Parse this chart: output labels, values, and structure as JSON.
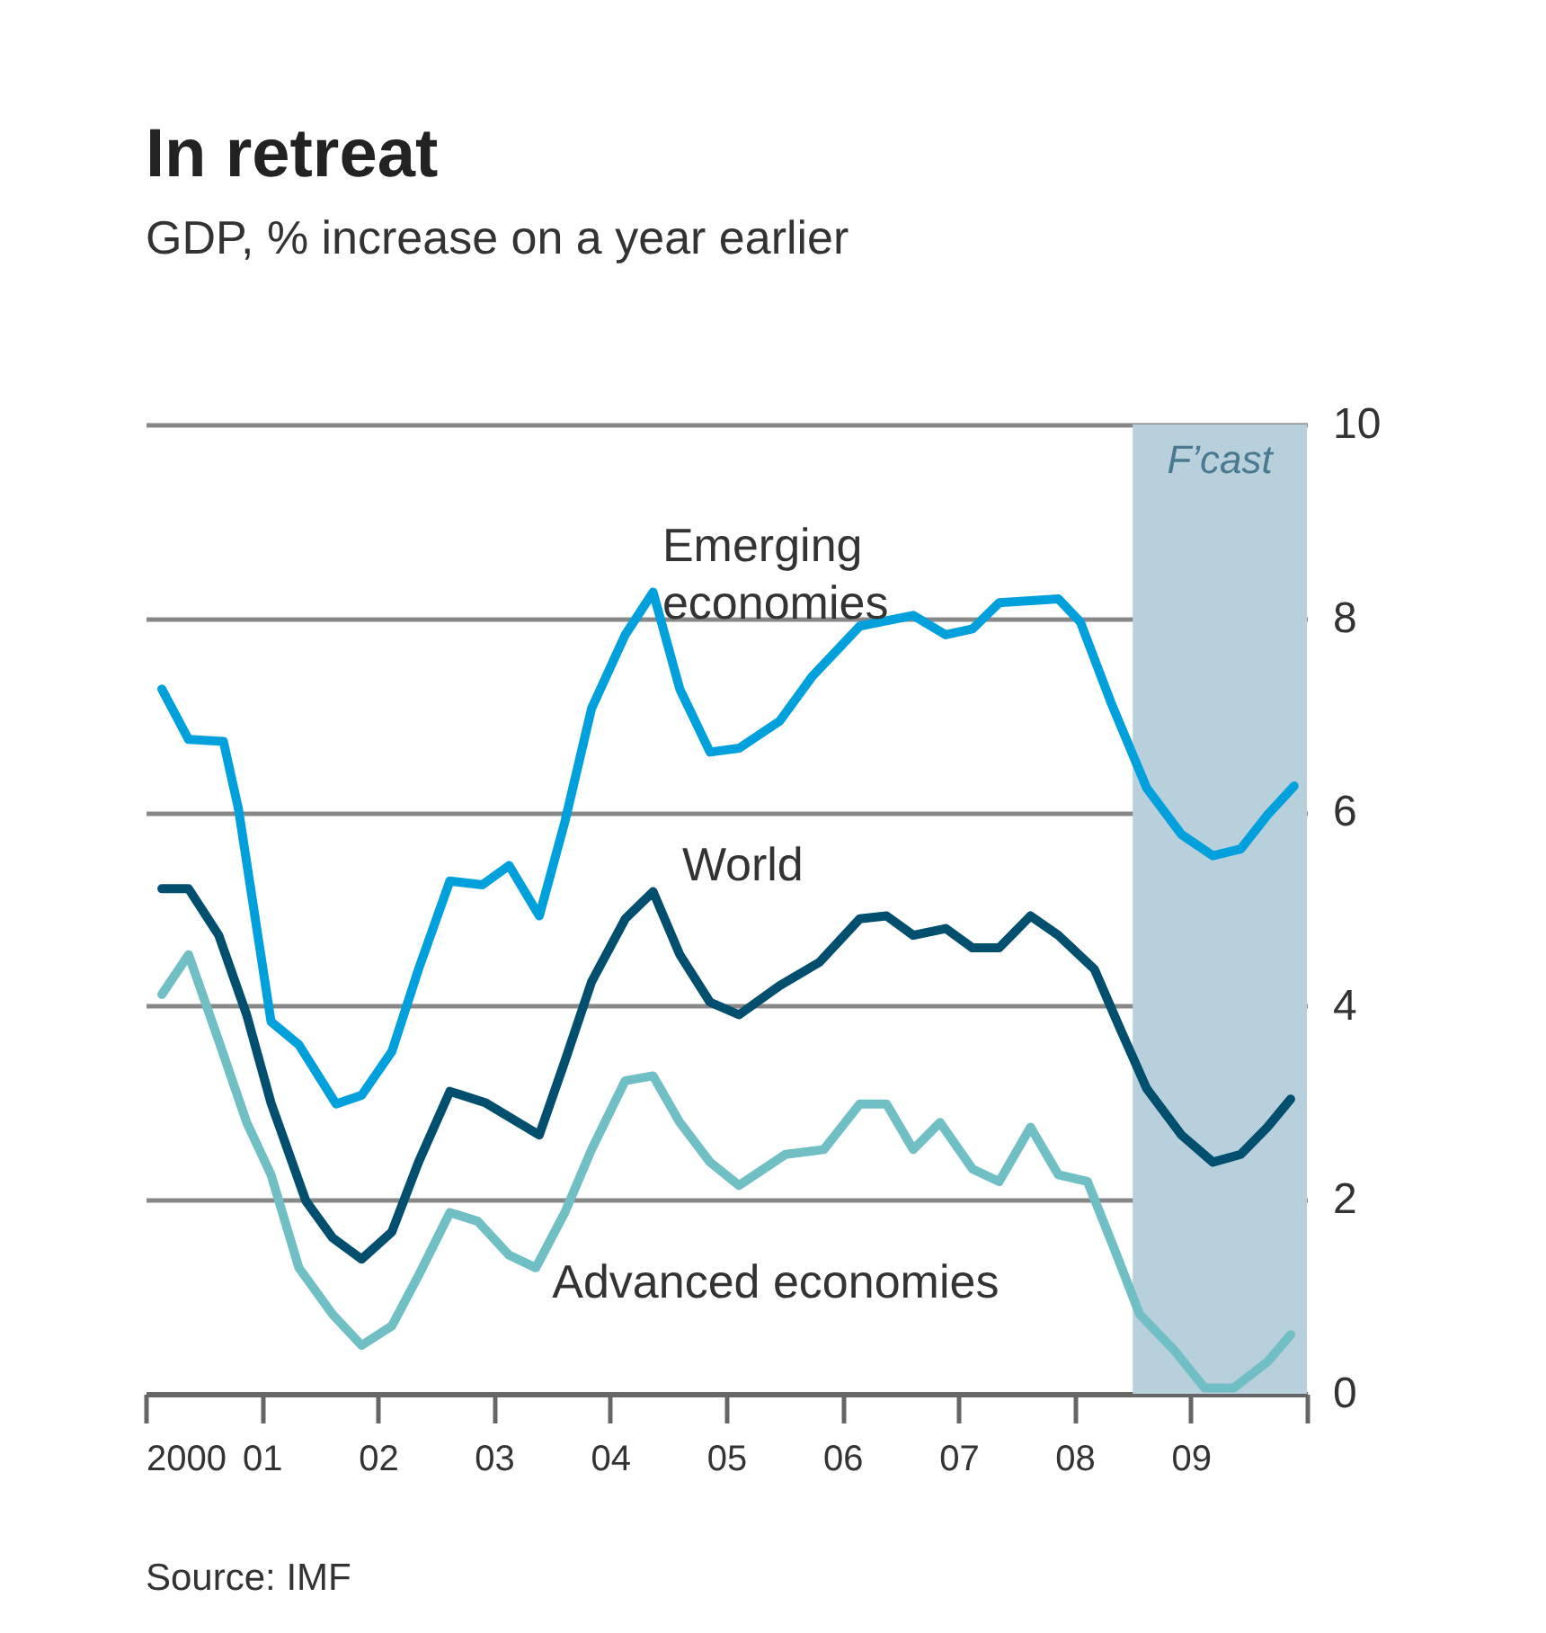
{
  "chart_data": {
    "type": "line",
    "title": "In retreat",
    "subtitle": "GDP, % increase on a year earlier",
    "x": [
      2000.14,
      2000.37,
      2000.67,
      2000.8,
      2001.08,
      2001.32,
      2001.64,
      2001.86,
      2002.12,
      2002.35,
      2002.62,
      2002.9,
      2003.13,
      2003.39,
      2003.61,
      2003.84,
      2004.13,
      2004.37,
      2004.6,
      2004.86,
      2005.11,
      2005.46,
      2005.74,
      2006.15,
      2006.61,
      2006.89,
      2007.12,
      2007.35,
      2007.86,
      2008.05,
      2008.31,
      2008.62,
      2008.92,
      2009.19,
      2009.43,
      2009.66,
      2009.89
    ],
    "series": [
      {
        "name": "Emerging economies",
        "color": "#00a0dc",
        "values": [
          7.27,
          6.75,
          6.73,
          6.03,
          3.84,
          3.6,
          2.99,
          3.08,
          3.53,
          4.38,
          5.29,
          5.25,
          5.45,
          4.93,
          5.9,
          7.07,
          7.83,
          8.27,
          7.27,
          6.62,
          6.66,
          6.94,
          7.4,
          7.92,
          8.03,
          7.83,
          7.89,
          8.16,
          8.2,
          7.96,
          7.14,
          6.25,
          5.77,
          5.55,
          5.62,
          5.97,
          6.27
        ]
      },
      {
        "name": "World",
        "color": "#004f6e",
        "x": [
          2000.14,
          2000.37,
          2000.63,
          2000.87,
          2001.08,
          2001.38,
          2001.61,
          2001.86,
          2002.12,
          2002.35,
          2002.62,
          2002.93,
          2003.39,
          2003.61,
          2003.84,
          2004.13,
          2004.37,
          2004.6,
          2004.86,
          2005.11,
          2005.46,
          2005.8,
          2006.15,
          2006.38,
          2006.61,
          2006.89,
          2007.12,
          2007.35,
          2007.62,
          2007.86,
          2008.17,
          2008.39,
          2008.62,
          2008.92,
          2009.19,
          2009.43,
          2009.66,
          2009.86
        ],
        "values": [
          5.21,
          5.21,
          4.73,
          3.91,
          3.0,
          1.99,
          1.61,
          1.39,
          1.67,
          2.39,
          3.12,
          3.0,
          2.67,
          3.43,
          4.25,
          4.9,
          5.18,
          4.53,
          4.04,
          3.91,
          4.21,
          4.45,
          4.9,
          4.93,
          4.73,
          4.8,
          4.6,
          4.6,
          4.93,
          4.73,
          4.38,
          3.77,
          3.15,
          2.67,
          2.39,
          2.47,
          2.75,
          3.04
        ]
      },
      {
        "name": "Advanced economies",
        "color": "#6fbfc4",
        "x": [
          2000.14,
          2000.37,
          2000.63,
          2000.87,
          2001.08,
          2001.32,
          2001.61,
          2001.86,
          2002.12,
          2002.35,
          2002.62,
          2002.86,
          2003.13,
          2003.36,
          2003.61,
          2003.84,
          2004.13,
          2004.37,
          2004.6,
          2004.86,
          2005.11,
          2005.51,
          2005.84,
          2006.15,
          2006.38,
          2006.61,
          2006.84,
          2007.12,
          2007.35,
          2007.62,
          2007.86,
          2008.11,
          2008.34,
          2008.56,
          2008.85,
          2009.12,
          2009.37,
          2009.66,
          2009.86
        ],
        "values": [
          4.12,
          4.53,
          3.64,
          2.8,
          2.26,
          1.3,
          0.82,
          0.5,
          0.7,
          1.22,
          1.87,
          1.78,
          1.43,
          1.3,
          1.87,
          2.52,
          3.23,
          3.28,
          2.8,
          2.39,
          2.15,
          2.47,
          2.52,
          2.99,
          2.99,
          2.52,
          2.8,
          2.32,
          2.19,
          2.75,
          2.26,
          2.19,
          1.5,
          0.82,
          0.46,
          0.06,
          0.06,
          0.33,
          0.61
        ]
      }
    ],
    "xlim": [
      2000,
      2010
    ],
    "xticks": [
      2000,
      {
        "value": 2001,
        "label": "01"
      },
      {
        "value": 2002,
        "label": "02"
      },
      {
        "value": 2003,
        "label": "03"
      },
      {
        "value": 2004,
        "label": "04"
      },
      {
        "value": 2005,
        "label": "05"
      },
      {
        "value": 2006,
        "label": "06"
      },
      {
        "value": 2007,
        "label": "07"
      },
      {
        "value": 2008,
        "label": "08"
      },
      {
        "value": 2009,
        "label": "09"
      },
      {
        "value": 2010,
        "label": null
      }
    ],
    "ylim": [
      0,
      10
    ],
    "yticks": [
      0,
      2,
      4,
      6,
      8,
      10
    ],
    "grid": "y",
    "legend": false,
    "line_style": "solid",
    "bands": [
      {
        "axis": "x",
        "from": 2008.5,
        "to": 2010,
        "label": "F’cast",
        "color": "#b8cfdc"
      }
    ],
    "annotations": [
      "Source: IMF"
    ]
  }
}
